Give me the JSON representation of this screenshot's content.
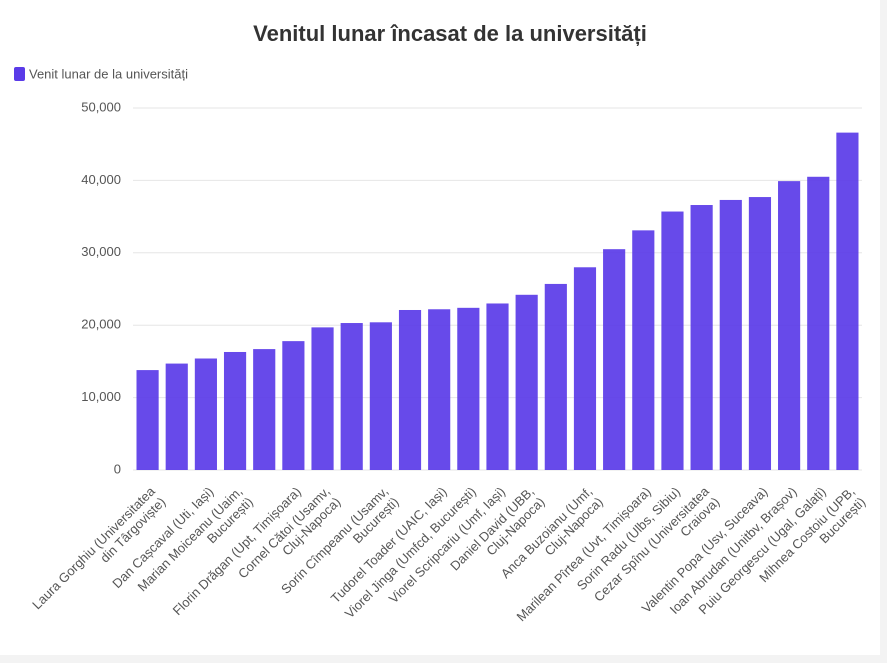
{
  "chart_data": {
    "type": "bar",
    "title": "Venitul lunar încasat de la universități",
    "legend": "Venit lunar de la universități",
    "color": "#5a3be8",
    "categories": [
      "Laura Gorghiu (Universitatea\ndin Târgoviște)",
      null,
      "Dan Cașcaval (Uti, Iași)",
      "Marian Moiceanu (Uaim,\nBucurești)",
      null,
      "Florin Drăgan (Upt, Timișoara)",
      "Cornel Cătoi (Usamv,\nCluj-Napoca)",
      null,
      "Sorin Cîmpeanu (Usamv,\nBucurești)",
      null,
      "Tudorel Toader (UAIC, Iași)",
      "Viorel Jinga (Umfcd, București)",
      "Viorel Scripcariu (Umf, Iași)",
      "Daniel David (UBB,\nCluj-Napoca)",
      null,
      "Anca Buzoianu (Umf,\nCluj-Napoca)",
      null,
      "Marilean Pîrtea (Uvt, Timișoara)",
      "Sorin Radu (Ulbs, Sibiu)",
      "Cezar Spînu (Universitatea\nCraiova)",
      null,
      "Valentin Popa (Usv, Suceava)",
      "Ioan Abrudan (Unitbv, Brașov)",
      "Puiu Georgescu (Ugal, Galați)",
      "Mihnea Costoiu (UPB,\nBucurești)"
    ],
    "values": [
      13800,
      14700,
      15400,
      16300,
      16700,
      17800,
      19700,
      20300,
      20400,
      22100,
      22200,
      22400,
      23000,
      24200,
      25700,
      28000,
      30500,
      33100,
      35700,
      36600,
      37300,
      37700,
      39900,
      40500,
      46600
    ],
    "ylim": [
      0,
      50000
    ],
    "yticks": [
      0,
      {
        "value": 10000,
        "label": "10,000"
      },
      {
        "value": 20000,
        "label": "20,000"
      },
      {
        "value": 30000,
        "label": "30,000"
      },
      {
        "value": 40000,
        "label": "40,000"
      },
      {
        "value": 50000,
        "label": "50,000"
      }
    ],
    "grid": true
  }
}
